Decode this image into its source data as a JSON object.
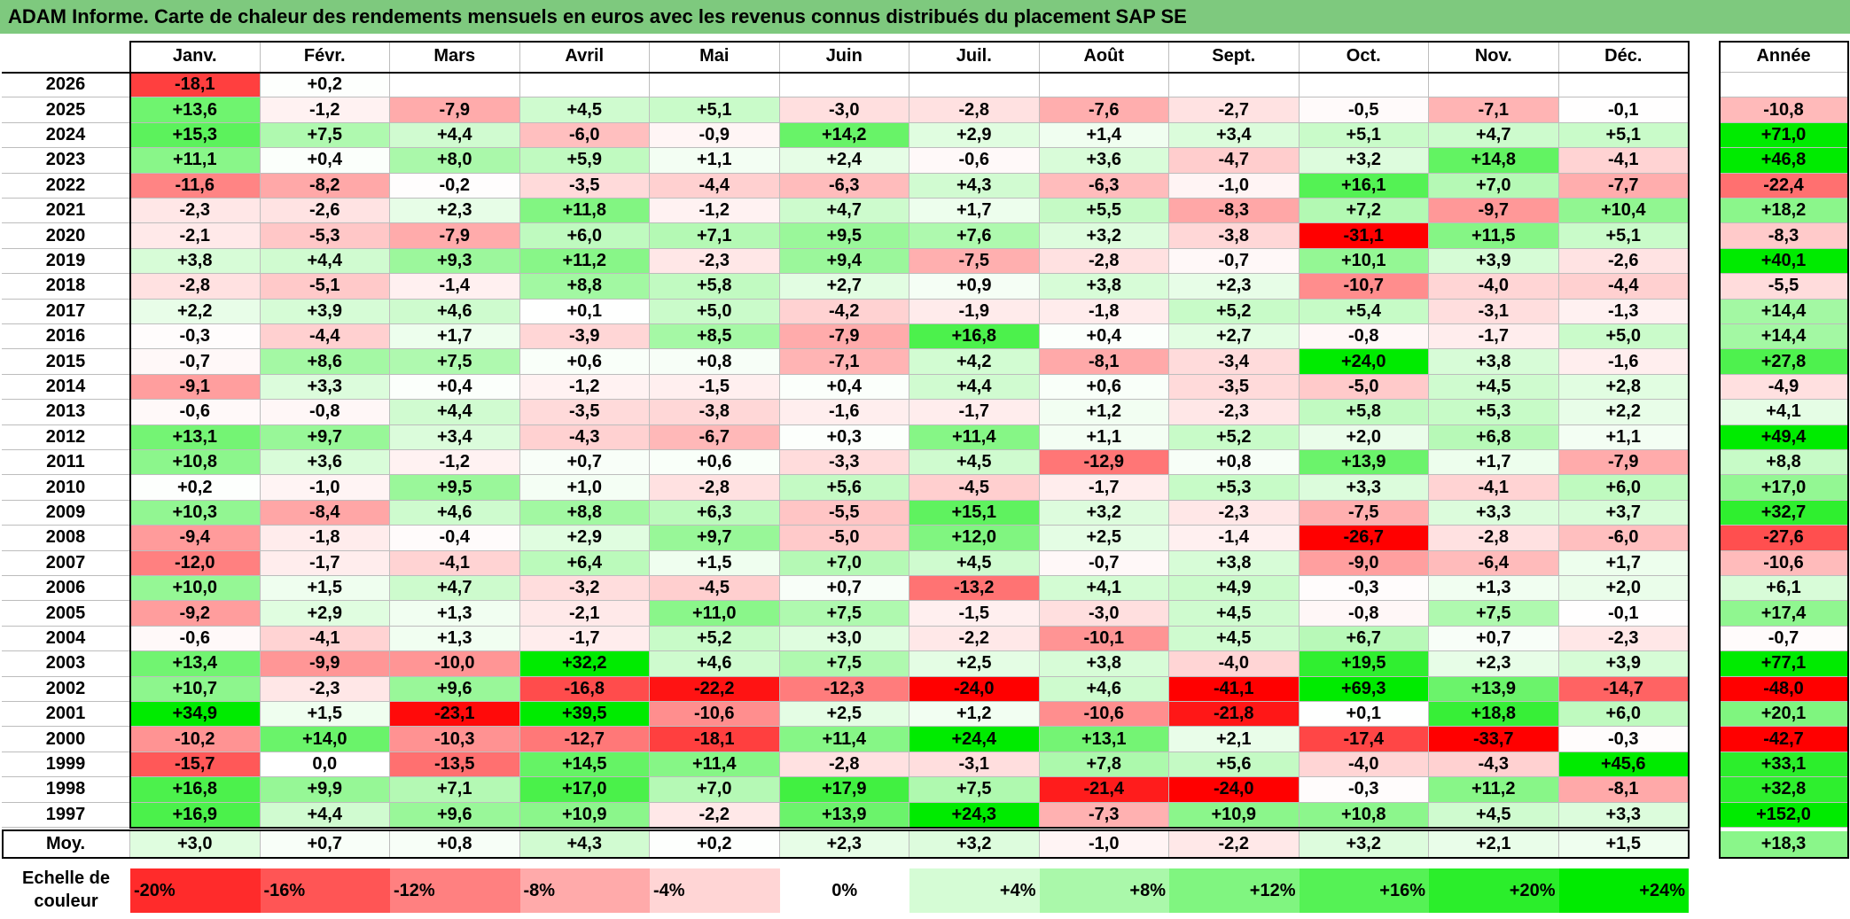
{
  "title": "ADAM Informe. Carte de chaleur des rendements mensuels en euros avec les revenus connus distribués du placement SAP SE",
  "chart_data": {
    "type": "heatmap",
    "months": [
      "Janv.",
      "Févr.",
      "Mars",
      "Avril",
      "Mai",
      "Juin",
      "Juil.",
      "Août",
      "Sept.",
      "Oct.",
      "Nov.",
      "Déc."
    ],
    "year_header": "Année",
    "rows": [
      {
        "year": "2026",
        "values": [
          "-18,1",
          "+0,2",
          "",
          "",
          "",
          "",
          "",
          "",
          "",
          "",
          "",
          ""
        ],
        "annual": ""
      },
      {
        "year": "2025",
        "values": [
          "+13,6",
          "-1,2",
          "-7,9",
          "+4,5",
          "+5,1",
          "-3,0",
          "-2,8",
          "-7,6",
          "-2,7",
          "-0,5",
          "-7,1",
          "-0,1"
        ],
        "annual": "-10,8"
      },
      {
        "year": "2024",
        "values": [
          "+15,3",
          "+7,5",
          "+4,4",
          "-6,0",
          "-0,9",
          "+14,2",
          "+2,9",
          "+1,4",
          "+3,4",
          "+5,1",
          "+4,7",
          "+5,1"
        ],
        "annual": "+71,0"
      },
      {
        "year": "2023",
        "values": [
          "+11,1",
          "+0,4",
          "+8,0",
          "+5,9",
          "+1,1",
          "+2,4",
          "-0,6",
          "+3,6",
          "-4,7",
          "+3,2",
          "+14,8",
          "-4,1"
        ],
        "annual": "+46,8"
      },
      {
        "year": "2022",
        "values": [
          "-11,6",
          "-8,2",
          "-0,2",
          "-3,5",
          "-4,4",
          "-6,3",
          "+4,3",
          "-6,3",
          "-1,0",
          "+16,1",
          "+7,0",
          "-7,7"
        ],
        "annual": "-22,4"
      },
      {
        "year": "2021",
        "values": [
          "-2,3",
          "-2,6",
          "+2,3",
          "+11,8",
          "-1,2",
          "+4,7",
          "+1,7",
          "+5,5",
          "-8,3",
          "+7,2",
          "-9,7",
          "+10,4"
        ],
        "annual": "+18,2"
      },
      {
        "year": "2020",
        "values": [
          "-2,1",
          "-5,3",
          "-7,9",
          "+6,0",
          "+7,1",
          "+9,5",
          "+7,6",
          "+3,2",
          "-3,8",
          "-31,1",
          "+11,5",
          "+5,1"
        ],
        "annual": "-8,3"
      },
      {
        "year": "2019",
        "values": [
          "+3,8",
          "+4,4",
          "+9,3",
          "+11,2",
          "-2,3",
          "+9,4",
          "-7,5",
          "-2,8",
          "-0,7",
          "+10,1",
          "+3,9",
          "-2,6"
        ],
        "annual": "+40,1"
      },
      {
        "year": "2018",
        "values": [
          "-2,8",
          "-5,1",
          "-1,4",
          "+8,8",
          "+5,8",
          "+2,7",
          "+0,9",
          "+3,8",
          "+2,3",
          "-10,7",
          "-4,0",
          "-4,4"
        ],
        "annual": "-5,5"
      },
      {
        "year": "2017",
        "values": [
          "+2,2",
          "+3,9",
          "+4,6",
          "+0,1",
          "+5,0",
          "-4,2",
          "-1,9",
          "-1,8",
          "+5,2",
          "+5,4",
          "-3,1",
          "-1,3"
        ],
        "annual": "+14,4"
      },
      {
        "year": "2016",
        "values": [
          "-0,3",
          "-4,4",
          "+1,7",
          "-3,9",
          "+8,5",
          "-7,9",
          "+16,8",
          "+0,4",
          "+2,7",
          "-0,8",
          "-1,7",
          "+5,0"
        ],
        "annual": "+14,4"
      },
      {
        "year": "2015",
        "values": [
          "-0,7",
          "+8,6",
          "+7,5",
          "+0,6",
          "+0,8",
          "-7,1",
          "+4,2",
          "-8,1",
          "-3,4",
          "+24,0",
          "+3,8",
          "-1,6"
        ],
        "annual": "+27,8"
      },
      {
        "year": "2014",
        "values": [
          "-9,1",
          "+3,3",
          "+0,4",
          "-1,2",
          "-1,5",
          "+0,4",
          "+4,4",
          "+0,6",
          "-3,5",
          "-5,0",
          "+4,5",
          "+2,8"
        ],
        "annual": "-4,9"
      },
      {
        "year": "2013",
        "values": [
          "-0,6",
          "-0,8",
          "+4,4",
          "-3,5",
          "-3,8",
          "-1,6",
          "-1,7",
          "+1,2",
          "-2,3",
          "+5,8",
          "+5,3",
          "+2,2"
        ],
        "annual": "+4,1"
      },
      {
        "year": "2012",
        "values": [
          "+13,1",
          "+9,7",
          "+3,4",
          "-4,3",
          "-6,7",
          "+0,3",
          "+11,4",
          "+1,1",
          "+5,2",
          "+2,0",
          "+6,8",
          "+1,1"
        ],
        "annual": "+49,4"
      },
      {
        "year": "2011",
        "values": [
          "+10,8",
          "+3,6",
          "-1,2",
          "+0,7",
          "+0,6",
          "-3,3",
          "+4,5",
          "-12,9",
          "+0,8",
          "+13,9",
          "+1,7",
          "-7,9"
        ],
        "annual": "+8,8"
      },
      {
        "year": "2010",
        "values": [
          "+0,2",
          "-1,0",
          "+9,5",
          "+1,0",
          "-2,8",
          "+5,6",
          "-4,5",
          "-1,7",
          "+5,3",
          "+3,3",
          "-4,1",
          "+6,0"
        ],
        "annual": "+17,0"
      },
      {
        "year": "2009",
        "values": [
          "+10,3",
          "-8,4",
          "+4,6",
          "+8,8",
          "+6,3",
          "-5,5",
          "+15,1",
          "+3,2",
          "-2,3",
          "-7,5",
          "+3,3",
          "+3,7"
        ],
        "annual": "+32,7"
      },
      {
        "year": "2008",
        "values": [
          "-9,4",
          "-1,8",
          "-0,4",
          "+2,9",
          "+9,7",
          "-5,0",
          "+12,0",
          "+2,5",
          "-1,4",
          "-26,7",
          "-2,8",
          "-6,0"
        ],
        "annual": "-27,6"
      },
      {
        "year": "2007",
        "values": [
          "-12,0",
          "-1,7",
          "-4,1",
          "+6,4",
          "+1,5",
          "+7,0",
          "+4,5",
          "-0,7",
          "+3,8",
          "-9,0",
          "-6,4",
          "+1,7"
        ],
        "annual": "-10,6"
      },
      {
        "year": "2006",
        "values": [
          "+10,0",
          "+1,5",
          "+4,7",
          "-3,2",
          "-4,5",
          "+0,7",
          "-13,2",
          "+4,1",
          "+4,9",
          "-0,3",
          "+1,3",
          "+2,0"
        ],
        "annual": "+6,1"
      },
      {
        "year": "2005",
        "values": [
          "-9,2",
          "+2,9",
          "+1,3",
          "-2,1",
          "+11,0",
          "+7,5",
          "-1,5",
          "-3,0",
          "+4,5",
          "-0,8",
          "+7,5",
          "-0,1"
        ],
        "annual": "+17,4"
      },
      {
        "year": "2004",
        "values": [
          "-0,6",
          "-4,1",
          "+1,3",
          "-1,7",
          "+5,2",
          "+3,0",
          "-2,2",
          "-10,1",
          "+4,5",
          "+6,7",
          "+0,7",
          "-2,3"
        ],
        "annual": "-0,7"
      },
      {
        "year": "2003",
        "values": [
          "+13,4",
          "-9,9",
          "-10,0",
          "+32,2",
          "+4,6",
          "+7,5",
          "+2,5",
          "+3,8",
          "-4,0",
          "+19,5",
          "+2,3",
          "+3,9"
        ],
        "annual": "+77,1"
      },
      {
        "year": "2002",
        "values": [
          "+10,7",
          "-2,3",
          "+9,6",
          "-16,8",
          "-22,2",
          "-12,3",
          "-24,0",
          "+4,6",
          "-41,1",
          "+69,3",
          "+13,9",
          "-14,7"
        ],
        "annual": "-48,0"
      },
      {
        "year": "2001",
        "values": [
          "+34,9",
          "+1,5",
          "-23,1",
          "+39,5",
          "-10,6",
          "+2,5",
          "+1,2",
          "-10,6",
          "-21,8",
          "+0,1",
          "+18,8",
          "+6,0"
        ],
        "annual": "+20,1"
      },
      {
        "year": "2000",
        "values": [
          "-10,2",
          "+14,0",
          "-10,3",
          "-12,7",
          "-18,1",
          "+11,4",
          "+24,4",
          "+13,1",
          "+2,1",
          "-17,4",
          "-33,7",
          "-0,3"
        ],
        "annual": "-42,7"
      },
      {
        "year": "1999",
        "values": [
          "-15,7",
          "0,0",
          "-13,5",
          "+14,5",
          "+11,4",
          "-2,8",
          "-3,1",
          "+7,8",
          "+5,6",
          "-4,0",
          "-4,3",
          "+45,6"
        ],
        "annual": "+33,1"
      },
      {
        "year": "1998",
        "values": [
          "+16,8",
          "+9,9",
          "+7,1",
          "+17,0",
          "+7,0",
          "+17,9",
          "+7,5",
          "-21,4",
          "-24,0",
          "-0,3",
          "+11,2",
          "-8,1"
        ],
        "annual": "+32,8"
      },
      {
        "year": "1997",
        "values": [
          "+16,9",
          "+4,4",
          "+9,6",
          "+10,9",
          "-2,2",
          "+13,9",
          "+24,3",
          "-7,3",
          "+10,9",
          "+10,8",
          "+4,5",
          "+3,3"
        ],
        "annual": "+152,0"
      }
    ],
    "average": {
      "label": "Moy.",
      "values": [
        "+3,0",
        "+0,7",
        "+0,8",
        "+4,3",
        "+0,2",
        "+2,3",
        "+3,2",
        "-1,0",
        "-2,2",
        "+3,2",
        "+2,1",
        "+1,5"
      ],
      "annual": "+18,3"
    },
    "scale": {
      "label_line1": "Echelle de",
      "label_line2": "couleur",
      "steps": [
        "-20%",
        "-16%",
        "-12%",
        "-8%",
        "-4%",
        "0%",
        "+4%",
        "+8%",
        "+12%",
        "+16%",
        "+20%",
        "+24%"
      ]
    },
    "colors": {
      "negative": "#ff0000",
      "positive": "#00e600",
      "neutral": "#ffffff",
      "header_bg": "#7ec97e"
    }
  }
}
